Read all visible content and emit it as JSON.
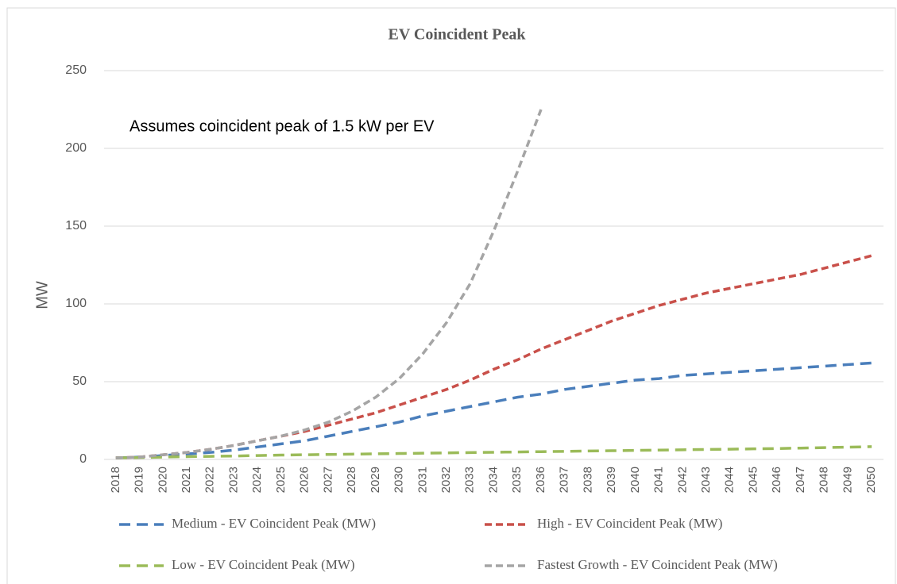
{
  "chart_data": {
    "type": "line",
    "title": "EV Coincident Peak",
    "y_label": "MW",
    "annotation": "Assumes coincident peak of 1.5 kW per EV",
    "categories": [
      "2018",
      "2019",
      "2020",
      "2021",
      "2022",
      "2023",
      "2024",
      "2025",
      "2026",
      "2027",
      "2028",
      "2029",
      "2030",
      "2031",
      "2032",
      "2033",
      "2034",
      "2035",
      "2036",
      "2037",
      "2038",
      "2039",
      "2040",
      "2041",
      "2042",
      "2043",
      "2044",
      "2045",
      "2046",
      "2047",
      "2048",
      "2049",
      "2050"
    ],
    "ylim": [
      0,
      250
    ],
    "yticks": [
      0,
      50,
      100,
      150,
      200,
      250
    ],
    "grid": true,
    "legend": "bottom",
    "series": [
      {
        "name": "Medium - EV Coincident Peak (MW)",
        "color": "#4a7ebb",
        "values": [
          1,
          1.5,
          2.5,
          3.5,
          4.5,
          6,
          8,
          10,
          12,
          15,
          18,
          21,
          24,
          28,
          31,
          34,
          37,
          40,
          42,
          45,
          47,
          49,
          51,
          52,
          54,
          55,
          56,
          57,
          58,
          59,
          60,
          61,
          62
        ]
      },
      {
        "name": "High - EV Coincident Peak (MW)",
        "color": "#c9504a",
        "values": [
          1,
          1.5,
          3,
          4.5,
          6.5,
          9,
          12,
          15,
          18,
          22,
          26,
          30,
          35,
          40,
          45,
          51,
          58,
          64,
          71,
          77,
          83,
          89,
          94,
          99,
          103,
          107,
          110,
          113,
          116,
          119,
          123,
          127,
          131
        ]
      },
      {
        "name": "Low - EV Coincident Peak (MW)",
        "color": "#9bbb59",
        "values": [
          1,
          1.2,
          1.5,
          1.8,
          2,
          2.2,
          2.5,
          2.8,
          3,
          3.2,
          3.4,
          3.6,
          3.8,
          4,
          4.2,
          4.4,
          4.6,
          4.8,
          5,
          5.2,
          5.4,
          5.6,
          5.8,
          6,
          6.2,
          6.4,
          6.6,
          6.8,
          7,
          7.3,
          7.6,
          7.9,
          8.2
        ]
      },
      {
        "name": "Fastest Growth - EV Coincident Peak (MW)",
        "color": "#a5a5a5",
        "values": [
          1,
          1.5,
          3,
          4.5,
          6.5,
          9,
          12,
          15,
          19,
          24,
          31,
          40,
          52,
          68,
          88,
          113,
          147,
          185,
          225,
          null,
          null,
          null,
          null,
          null,
          null,
          null,
          null,
          null,
          null,
          null,
          null,
          null,
          null
        ]
      }
    ]
  }
}
